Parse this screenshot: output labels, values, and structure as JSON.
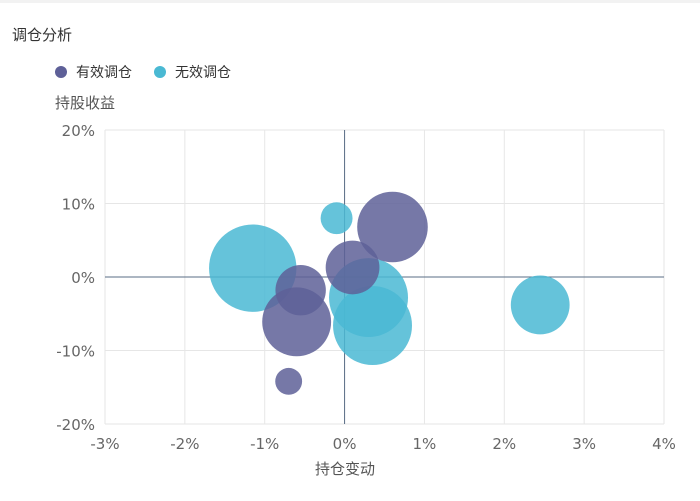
{
  "panel": {
    "title": "调仓分析"
  },
  "chart_data": {
    "type": "scatter",
    "title": "",
    "xlabel": "持仓变动",
    "ylabel": "持股收益",
    "xlim": [
      -3,
      4
    ],
    "ylim": [
      -20,
      20
    ],
    "x_ticks": [
      "-3%",
      "-2%",
      "-1%",
      "0%",
      "1%",
      "2%",
      "3%",
      "4%"
    ],
    "y_ticks": [
      "20%",
      "10%",
      "0%",
      "-10%",
      "-20%"
    ],
    "grid": true,
    "legend_position": "top-left",
    "series": [
      {
        "name": "有效调仓",
        "color": "#5e6098",
        "points": [
          {
            "x": 0.6,
            "y": 6.8,
            "size": 4.2
          },
          {
            "x": 0.1,
            "y": 1.3,
            "size": 3.2
          },
          {
            "x": -0.55,
            "y": -1.8,
            "size": 3.0
          },
          {
            "x": -0.6,
            "y": -6.1,
            "size": 4.1
          },
          {
            "x": -0.7,
            "y": -14.2,
            "size": 1.6
          }
        ]
      },
      {
        "name": "无效调仓",
        "color": "#4ab9d3",
        "points": [
          {
            "x": -0.1,
            "y": 8.0,
            "size": 1.9
          },
          {
            "x": -1.15,
            "y": 1.2,
            "size": 5.2
          },
          {
            "x": 0.3,
            "y": -2.8,
            "size": 4.7
          },
          {
            "x": 0.35,
            "y": -6.6,
            "size": 4.7
          },
          {
            "x": 2.45,
            "y": -3.8,
            "size": 3.5
          }
        ]
      }
    ]
  }
}
